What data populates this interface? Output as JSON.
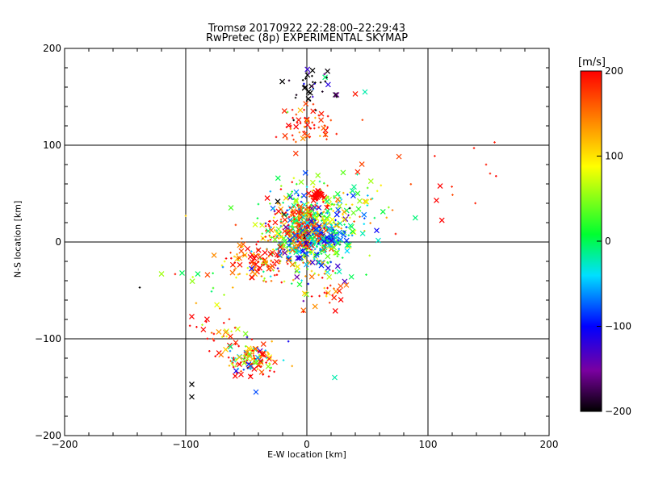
{
  "page": {
    "title_line1": "Tromsø 20170922 22:28:00–22:29:43",
    "title_line2": "RwPretec (8p) EXPERIMENTAL SKYMAP",
    "xlabel": "E-W location [km]",
    "ylabel": "N-S location [km]",
    "colorbar_unit": "[m/s]"
  },
  "chart_data": {
    "type": "scatter",
    "title": "Tromsø 20170922 22:28:00–22:29:43",
    "subtitle": "RwPretec (8p) EXPERIMENTAL SKYMAP",
    "xlabel": "E-W location [km]",
    "ylabel": "N-S location [km]",
    "xlim": [
      -200,
      200
    ],
    "ylim": [
      -200,
      200
    ],
    "xticks": [
      "−200",
      "−100",
      "0",
      "100",
      "200"
    ],
    "yticks": [
      "−200",
      "−100",
      "0",
      "100",
      "200"
    ],
    "grid": true,
    "gridlines": [
      -100,
      0,
      100
    ],
    "colorbar": {
      "label": "[m/s]",
      "range": [
        -200,
        200
      ],
      "ticks": [
        "−200",
        "−100",
        "0",
        "100",
        "200"
      ],
      "colormap": "rainbow (black→purple→blue→cyan→green→yellow→red)"
    },
    "markers": [
      "x (large)",
      "+ (small)"
    ],
    "clusters": [
      {
        "x": 0,
        "y": 10,
        "sx": 18,
        "sy": 22,
        "n": 520,
        "v": 20,
        "vs": 90
      },
      {
        "x": -5,
        "y": 15,
        "sx": 12,
        "sy": 14,
        "n": 160,
        "v": 170,
        "vs": 40
      },
      {
        "x": 10,
        "y": 5,
        "sx": 14,
        "sy": 12,
        "n": 140,
        "v": -60,
        "vs": 50
      },
      {
        "x": 8,
        "y": 48,
        "sx": 3,
        "sy": 3,
        "n": 40,
        "v": 200,
        "vs": 5
      },
      {
        "x": -40,
        "y": -20,
        "sx": 14,
        "sy": 12,
        "n": 110,
        "v": 170,
        "vs": 60
      },
      {
        "x": -45,
        "y": -120,
        "sx": 12,
        "sy": 10,
        "n": 130,
        "v": 150,
        "vs": 150
      },
      {
        "x": -70,
        "y": -95,
        "sx": 10,
        "sy": 10,
        "n": 30,
        "v": 140,
        "vs": 80
      },
      {
        "x": 0,
        "y": 118,
        "sx": 12,
        "sy": 10,
        "n": 60,
        "v": 190,
        "vs": 30
      },
      {
        "x": 5,
        "y": 158,
        "sx": 10,
        "sy": 12,
        "n": 40,
        "v": -180,
        "vs": 60
      },
      {
        "x": 15,
        "y": -50,
        "sx": 10,
        "sy": 12,
        "n": 25,
        "v": 180,
        "vs": 60
      },
      {
        "x": 40,
        "y": 40,
        "sx": 15,
        "sy": 15,
        "n": 50,
        "v": 20,
        "vs": 100
      },
      {
        "x": 100,
        "y": 60,
        "sx": 30,
        "sy": 20,
        "n": 14,
        "v": 190,
        "vs": 20
      },
      {
        "x": -65,
        "y": -35,
        "sx": 25,
        "sy": 15,
        "n": 25,
        "v": 100,
        "vs": 100
      }
    ],
    "isolated_points": [
      {
        "x": -95,
        "y": -147,
        "v": -200,
        "m": "x"
      },
      {
        "x": -95,
        "y": -160,
        "v": -200,
        "m": "x"
      },
      {
        "x": -120,
        "y": -33,
        "v": 60,
        "m": "x"
      },
      {
        "x": -103,
        "y": -32,
        "v": 0,
        "m": "x"
      },
      {
        "x": -90,
        "y": -33,
        "v": 0,
        "m": "x"
      },
      {
        "x": -138,
        "y": -47,
        "v": -200,
        "m": "+"
      },
      {
        "x": 48,
        "y": 155,
        "v": -20,
        "m": "x"
      },
      {
        "x": 40,
        "y": 153,
        "v": 190,
        "m": "x"
      },
      {
        "x": 155,
        "y": 103,
        "v": 190,
        "m": "+"
      },
      {
        "x": 138,
        "y": 97,
        "v": 190,
        "m": "+"
      },
      {
        "x": 148,
        "y": 80,
        "v": 190,
        "m": "+"
      },
      {
        "x": 107,
        "y": 43,
        "v": 200,
        "m": "x"
      },
      {
        "x": 23,
        "y": -140,
        "v": -20,
        "m": "x"
      },
      {
        "x": -42,
        "y": -155,
        "v": -80,
        "m": "x"
      },
      {
        "x": -95,
        "y": -77,
        "v": 200,
        "m": "x"
      },
      {
        "x": -100,
        "y": 27,
        "v": 110,
        "m": "+"
      }
    ]
  }
}
